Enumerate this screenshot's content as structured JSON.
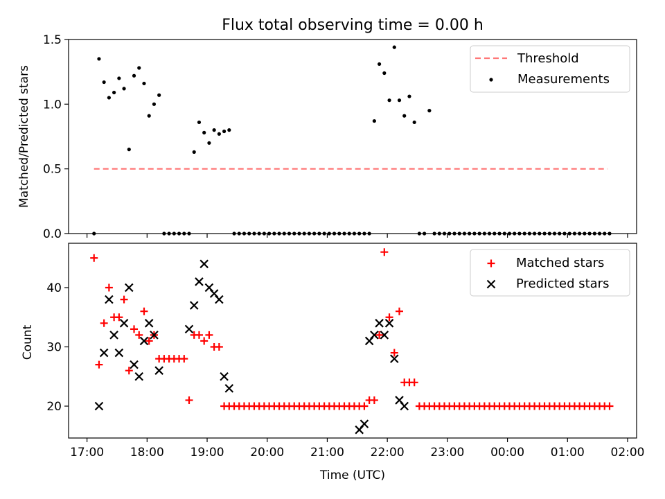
{
  "figure_title": "Flux total observing time = 0.00 h",
  "chart_data": [
    {
      "type": "scatter",
      "title": "Flux total observing time = 0.00 h",
      "xlabel": "",
      "ylabel": "Matched/Predicted stars",
      "ylim": [
        0,
        1.5
      ],
      "yticks": [
        0.0,
        0.5,
        1.0,
        1.5
      ],
      "ytick_labels": [
        "0.0",
        "0.5",
        "1.0",
        "1.5"
      ],
      "xlim_minutes_from_1700": [
        -15,
        545
      ],
      "legend_position": "upper right",
      "grid": false,
      "threshold": {
        "name": "Threshold",
        "value": 0.5,
        "x_start_min": 7,
        "x_end_min": 520,
        "color": "#ff7777",
        "style": "dashed"
      },
      "series": [
        {
          "name": "Measurements",
          "marker": "dot",
          "color": "#000000",
          "x_min": [
            7,
            12,
            17,
            22,
            27,
            32,
            37,
            42,
            47,
            52,
            57,
            62,
            67,
            72,
            77,
            82,
            87,
            92,
            97,
            102,
            107,
            112,
            117,
            122,
            127,
            132,
            137,
            142,
            147,
            152,
            157,
            162,
            167,
            172,
            177,
            182,
            187,
            192,
            197,
            202,
            207,
            212,
            217,
            222,
            227,
            232,
            237,
            242,
            247,
            252,
            257,
            262,
            267,
            272,
            277,
            282,
            287,
            292,
            297,
            302,
            307,
            312,
            317,
            322,
            327,
            332,
            337,
            342,
            347,
            352,
            357,
            362,
            367,
            372,
            377,
            382,
            387,
            392,
            397,
            402,
            407,
            412,
            417,
            422,
            427,
            432,
            437,
            442,
            447,
            452,
            457,
            462,
            467,
            472,
            477,
            482,
            487,
            492,
            497,
            502,
            507,
            512,
            517,
            522
          ],
          "y": [
            0,
            1.35,
            1.17,
            1.05,
            1.09,
            1.2,
            1.12,
            0.65,
            1.22,
            1.28,
            1.16,
            0.91,
            1.0,
            1.07,
            0,
            0,
            0,
            0,
            0,
            0,
            0.63,
            0.86,
            0.78,
            0.7,
            0.8,
            0.77,
            0.79,
            0.8,
            0,
            0,
            0,
            0,
            0,
            0,
            0,
            0,
            0,
            0,
            0,
            0,
            0,
            0,
            0,
            0,
            0,
            0,
            0,
            0,
            0,
            0,
            0,
            0,
            0,
            0,
            0,
            0,
            0.87,
            1.31,
            1.24,
            1.03,
            1.44,
            1.03,
            0.91,
            1.06,
            0.86,
            0,
            0,
            0.95,
            0,
            0,
            0,
            0,
            0,
            0,
            0,
            0,
            0,
            0,
            0,
            0,
            0,
            0,
            0,
            0,
            0,
            0,
            0,
            0,
            0,
            0,
            0,
            0,
            0,
            0,
            0,
            0,
            0,
            0,
            0,
            0,
            0,
            0,
            0,
            0
          ]
        }
      ]
    },
    {
      "type": "scatter",
      "title": "",
      "xlabel": "Time (UTC)",
      "ylabel": "Count",
      "ylim": [
        14.5,
        47
      ],
      "yticks": [
        20,
        30,
        40
      ],
      "ytick_labels": [
        "20",
        "30",
        "40"
      ],
      "xticks_min": [
        0,
        60,
        120,
        180,
        240,
        300,
        360,
        420,
        480,
        540
      ],
      "xtick_labels": [
        "17:00",
        "18:00",
        "19:00",
        "20:00",
        "21:00",
        "22:00",
        "23:00",
        "00:00",
        "01:00",
        "02:00"
      ],
      "legend_position": "upper right",
      "grid": false,
      "series": [
        {
          "name": "Matched stars",
          "marker": "plus",
          "color": "#ff0000",
          "x_min": [
            7,
            12,
            17,
            22,
            27,
            32,
            37,
            42,
            47,
            52,
            57,
            62,
            67,
            72,
            77,
            82,
            87,
            92,
            97,
            102,
            107,
            112,
            117,
            122,
            127,
            132,
            137,
            142,
            147,
            152,
            157,
            162,
            167,
            172,
            177,
            182,
            187,
            192,
            197,
            202,
            207,
            212,
            217,
            222,
            227,
            232,
            237,
            242,
            247,
            252,
            257,
            262,
            267,
            272,
            277,
            282,
            287,
            292,
            297,
            302,
            307,
            312,
            317,
            322,
            327,
            332,
            337,
            342,
            347,
            352,
            357,
            362,
            367,
            372,
            377,
            382,
            387,
            392,
            397,
            402,
            407,
            412,
            417,
            422,
            427,
            432,
            437,
            442,
            447,
            452,
            457,
            462,
            467,
            472,
            477,
            482,
            487,
            492,
            497,
            502,
            507,
            512,
            517,
            522
          ],
          "y": [
            45,
            27,
            34,
            40,
            35,
            35,
            38,
            26,
            33,
            32,
            36,
            31,
            32,
            28,
            28,
            28,
            28,
            28,
            28,
            21,
            32,
            32,
            31,
            32,
            30,
            30,
            20,
            20,
            20,
            20,
            20,
            20,
            20,
            20,
            20,
            20,
            20,
            20,
            20,
            20,
            20,
            20,
            20,
            20,
            20,
            20,
            20,
            20,
            20,
            20,
            20,
            20,
            20,
            20,
            20,
            21,
            21,
            32,
            46,
            35,
            29,
            36,
            24,
            24,
            24,
            20,
            20,
            20,
            20,
            20,
            20,
            20,
            20,
            20,
            20,
            20,
            20,
            20,
            20,
            20,
            20,
            20,
            20,
            20,
            20,
            20,
            20,
            20,
            20,
            20,
            20,
            20,
            20,
            20,
            20,
            20,
            20,
            20,
            20,
            20,
            20,
            20,
            20,
            20
          ]
        },
        {
          "name": "Predicted stars",
          "marker": "x",
          "color": "#000000",
          "x_min": [
            12,
            17,
            22,
            27,
            32,
            37,
            42,
            47,
            52,
            57,
            62,
            67,
            72,
            102,
            107,
            112,
            117,
            122,
            127,
            132,
            137,
            142,
            272,
            277,
            282,
            287,
            292,
            297,
            302,
            307,
            312,
            317
          ],
          "y": [
            20,
            29,
            38,
            32,
            29,
            34,
            40,
            27,
            25,
            31,
            34,
            32,
            26,
            33,
            37,
            41,
            44,
            40,
            39,
            38,
            25,
            23,
            16,
            17,
            31,
            32,
            34,
            32,
            34,
            28,
            21,
            20
          ]
        }
      ]
    }
  ]
}
